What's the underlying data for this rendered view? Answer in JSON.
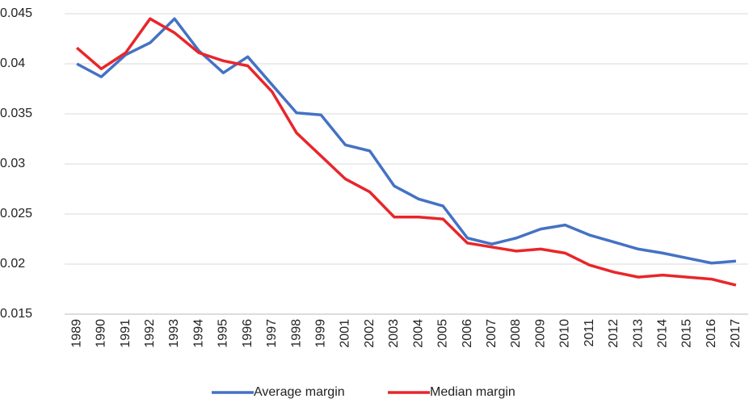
{
  "chart_data": {
    "type": "line",
    "categories": [
      "1989",
      "1990",
      "1991",
      "1992",
      "1993",
      "1994",
      "1995",
      "1996",
      "1997",
      "1998",
      "1999",
      "2001",
      "2002",
      "2003",
      "2004",
      "2005",
      "2006",
      "2007",
      "2008",
      "2009",
      "2010",
      "2011",
      "2012",
      "2013",
      "2014",
      "2015",
      "2016",
      "2017"
    ],
    "series": [
      {
        "name": "Average margin",
        "color": "#4472c4",
        "values": [
          0.04,
          0.0387,
          0.0409,
          0.0421,
          0.0445,
          0.0413,
          0.0391,
          0.0407,
          0.0379,
          0.0351,
          0.0349,
          0.0319,
          0.0313,
          0.0278,
          0.0265,
          0.0258,
          0.0226,
          0.022,
          0.0226,
          0.0235,
          0.0239,
          0.0229,
          0.0222,
          0.0215,
          0.0211,
          0.0206,
          0.0201,
          0.0203
        ]
      },
      {
        "name": "Median margin",
        "color": "#e8262a",
        "values": [
          0.0416,
          0.0395,
          0.0411,
          0.0445,
          0.0431,
          0.0411,
          0.0403,
          0.0398,
          0.0372,
          0.0331,
          0.0308,
          0.0285,
          0.0272,
          0.0247,
          0.0247,
          0.0245,
          0.0221,
          0.0217,
          0.0213,
          0.0215,
          0.0211,
          0.0199,
          0.0192,
          0.0187,
          0.0189,
          0.0187,
          0.0185,
          0.0179
        ]
      }
    ],
    "ylim": [
      0.015,
      0.045
    ],
    "yticks": [
      0.015,
      0.02,
      0.025,
      0.03,
      0.035,
      0.04,
      0.045
    ],
    "grid": true,
    "legend": "bottom"
  }
}
